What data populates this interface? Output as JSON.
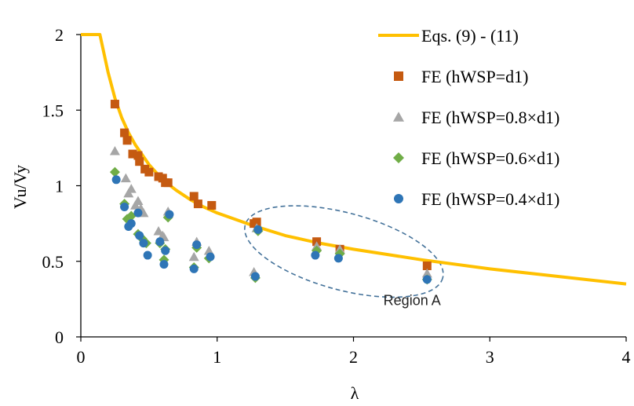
{
  "chart_data": {
    "type": "scatter",
    "title": "",
    "xlabel": "λ",
    "ylabel": "Vu/Vy",
    "xlim": [
      0,
      4
    ],
    "ylim": [
      0,
      2
    ],
    "x_ticks": [
      "0",
      "1",
      "2",
      "3",
      "4"
    ],
    "y_ticks": [
      "0",
      "0.5",
      "1",
      "1.5",
      "2"
    ],
    "grid": false,
    "legend_position": "top-right",
    "curve": {
      "name": "Eqs. (9) - (11)",
      "color": "#FFC000",
      "x": [
        0,
        0.14,
        0.2,
        0.25,
        0.3,
        0.35,
        0.4,
        0.5,
        0.6,
        0.7,
        0.8,
        0.9,
        1.0,
        1.25,
        1.5,
        1.75,
        2.0,
        2.5,
        3.0,
        3.5,
        4.0
      ],
      "y": [
        2.0,
        2.0,
        1.75,
        1.58,
        1.45,
        1.35,
        1.27,
        1.14,
        1.04,
        0.97,
        0.91,
        0.86,
        0.82,
        0.74,
        0.67,
        0.62,
        0.58,
        0.51,
        0.45,
        0.4,
        0.35
      ]
    },
    "series": [
      {
        "name": "FE (hWSP=d1)",
        "marker": "square",
        "color": "#C55A11",
        "x": [
          0.25,
          0.32,
          0.34,
          0.38,
          0.42,
          0.43,
          0.47,
          0.5,
          0.57,
          0.6,
          0.62,
          0.64,
          0.83,
          0.86,
          0.96,
          1.27,
          1.29,
          1.73,
          1.9,
          2.54
        ],
        "y": [
          1.54,
          1.35,
          1.3,
          1.21,
          1.2,
          1.16,
          1.11,
          1.09,
          1.06,
          1.05,
          1.02,
          1.02,
          0.93,
          0.88,
          0.87,
          0.75,
          0.76,
          0.63,
          0.58,
          0.47
        ]
      },
      {
        "name": "FE (hWSP=0.8×d1)",
        "marker": "triangle",
        "color": "#A6A6A6",
        "x": [
          0.25,
          0.33,
          0.35,
          0.37,
          0.4,
          0.42,
          0.44,
          0.46,
          0.57,
          0.6,
          0.61,
          0.64,
          0.83,
          0.85,
          0.94,
          1.27,
          1.29,
          1.73,
          1.9,
          2.54
        ],
        "y": [
          1.23,
          1.05,
          0.95,
          0.98,
          0.87,
          0.9,
          0.85,
          0.82,
          0.7,
          0.67,
          0.66,
          0.83,
          0.53,
          0.63,
          0.57,
          0.43,
          0.72,
          0.6,
          0.58,
          0.42
        ]
      },
      {
        "name": "FE (hWSP=0.6×d1)",
        "marker": "diamond",
        "color": "#70AD47",
        "x": [
          0.25,
          0.32,
          0.34,
          0.37,
          0.42,
          0.45,
          0.48,
          0.58,
          0.61,
          0.62,
          0.64,
          0.83,
          0.85,
          0.94,
          1.28,
          1.3,
          1.73,
          1.9,
          2.54
        ],
        "y": [
          1.09,
          0.88,
          0.78,
          0.8,
          0.68,
          0.65,
          0.62,
          0.62,
          0.51,
          0.58,
          0.79,
          0.46,
          0.59,
          0.52,
          0.39,
          0.7,
          0.57,
          0.55,
          0.38
        ]
      },
      {
        "name": "FE (hWSP=0.4×d1)",
        "marker": "circle",
        "color": "#2E75B6",
        "x": [
          0.26,
          0.32,
          0.35,
          0.37,
          0.42,
          0.43,
          0.46,
          0.49,
          0.58,
          0.61,
          0.62,
          0.65,
          0.83,
          0.85,
          0.95,
          1.28,
          1.3,
          1.72,
          1.89,
          2.54
        ],
        "y": [
          1.04,
          0.86,
          0.73,
          0.75,
          0.82,
          0.67,
          0.62,
          0.54,
          0.63,
          0.48,
          0.57,
          0.81,
          0.45,
          0.61,
          0.53,
          0.4,
          0.71,
          0.54,
          0.52,
          0.38
        ]
      }
    ],
    "annotation": {
      "text": "Region A",
      "ellipse_color": "#44729A"
    }
  }
}
